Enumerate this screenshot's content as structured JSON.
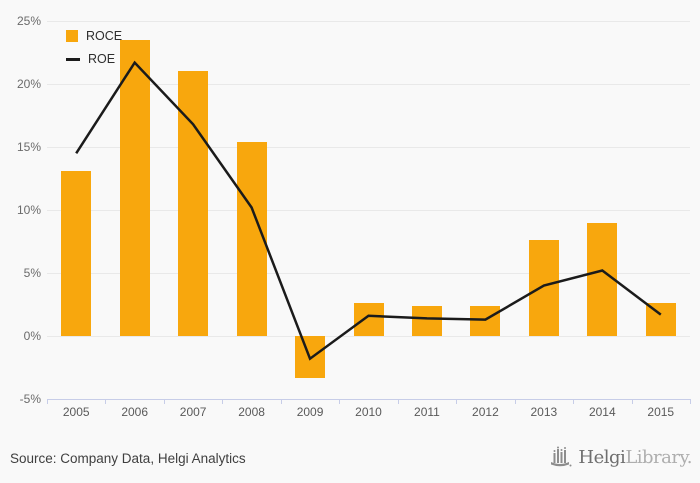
{
  "chart_data": {
    "type": "bar+line",
    "title": "",
    "categories": [
      "2005",
      "2006",
      "2007",
      "2008",
      "2009",
      "2010",
      "2011",
      "2012",
      "2013",
      "2014",
      "2015"
    ],
    "series": [
      {
        "name": "ROCE",
        "type": "bar",
        "color": "#F8A70D",
        "values": [
          13.1,
          23.5,
          21.0,
          15.4,
          -3.3,
          2.6,
          2.4,
          2.4,
          7.6,
          9.0,
          2.6
        ]
      },
      {
        "name": "ROE",
        "type": "line",
        "color": "#1b1b1b",
        "values": [
          14.5,
          21.7,
          16.8,
          10.2,
          -1.8,
          1.6,
          1.4,
          1.3,
          4.0,
          5.2,
          1.7
        ]
      }
    ],
    "ylim": [
      -5,
      25
    ],
    "yticks": [
      {
        "value": 25,
        "label": "25%"
      },
      {
        "value": 20,
        "label": "20%"
      },
      {
        "value": 15,
        "label": "15%"
      },
      {
        "value": 10,
        "label": "10%"
      },
      {
        "value": 5,
        "label": "5%"
      },
      {
        "value": 0,
        "label": "0%"
      },
      {
        "value": -5,
        "label": "-5%"
      }
    ],
    "xlabel": "",
    "ylabel": "",
    "grid": "horizontal",
    "legend_position": "top-left"
  },
  "footer": {
    "source": "Source: Company Data, Helgi Analytics",
    "logo": {
      "brand": "Helgi",
      "suffix": "Library."
    }
  },
  "colors": {
    "background": "#f9f9f9",
    "gridline": "#e9e9e9",
    "axis": "#c7cde8",
    "bar": "#F8A70D",
    "line": "#1b1b1b",
    "logo_gray": "#8d8d8d"
  }
}
